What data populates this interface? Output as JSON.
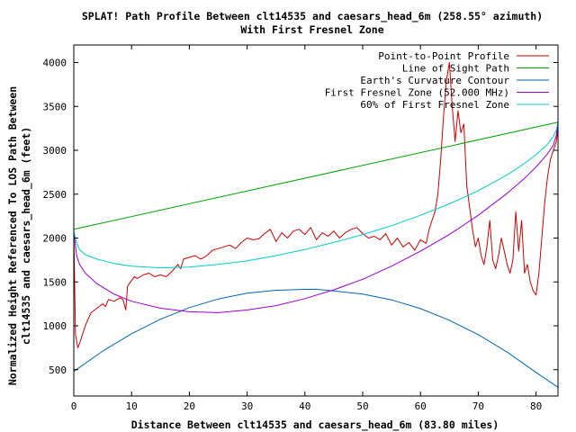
{
  "chart_data": {
    "type": "line",
    "title": "SPLAT! Path Profile Between clt14535 and caesars_head_6m (258.55° azimuth)",
    "subtitle": "With First Fresnel Zone",
    "xlabel": "Distance Between clt14535 and caesars_head_6m (83.80 miles)",
    "ylabel_line1": "Normalized Height Referenced To LOS Path Between",
    "ylabel_line2": "clt14535 and caesars_head_6m (feet)",
    "xlim": [
      0,
      83.8
    ],
    "ylim": [
      200,
      4200
    ],
    "x_ticks": [
      0,
      10,
      20,
      30,
      40,
      50,
      60,
      70,
      80
    ],
    "y_ticks": [
      500,
      1000,
      1500,
      2000,
      2500,
      3000,
      3500,
      4000
    ],
    "grid": false,
    "legend_position": "top-right",
    "series": [
      {
        "name": "Point-to-Point Profile",
        "color": "#cc0000",
        "x": [
          0,
          0.3,
          0.7,
          1,
          1.5,
          2,
          2.5,
          3,
          4,
          5,
          5.5,
          6,
          7,
          8,
          8.5,
          9,
          9.3,
          9.8,
          10.5,
          11,
          12,
          13,
          14,
          15,
          16,
          17,
          18,
          18.5,
          19,
          20,
          21,
          22,
          23,
          24,
          25,
          26,
          27,
          28,
          29,
          30,
          31,
          32,
          33,
          34,
          35,
          36,
          37,
          38,
          39,
          40,
          41,
          42,
          43,
          44,
          45,
          46,
          47,
          48,
          49,
          50,
          51,
          52,
          53,
          54,
          55,
          56,
          57,
          58,
          59,
          60,
          61,
          61.5,
          62,
          62.5,
          63,
          63.5,
          64,
          64.5,
          65,
          65.5,
          66,
          66.5,
          67,
          67.5,
          68,
          69,
          69.5,
          70,
          70.5,
          71,
          71.5,
          72,
          72.5,
          73,
          73.5,
          74,
          74.5,
          75,
          75.5,
          76,
          76.5,
          77,
          77.5,
          78,
          78.5,
          79,
          79.5,
          80,
          80.5,
          81,
          81.5,
          82,
          82.5,
          83,
          83.5,
          83.8
        ],
        "values": [
          2060,
          900,
          750,
          800,
          900,
          1000,
          1080,
          1150,
          1200,
          1250,
          1220,
          1300,
          1280,
          1320,
          1300,
          1180,
          1450,
          1500,
          1560,
          1540,
          1580,
          1600,
          1560,
          1580,
          1560,
          1620,
          1700,
          1650,
          1760,
          1780,
          1800,
          1760,
          1800,
          1860,
          1880,
          1900,
          1920,
          1880,
          1950,
          2000,
          1980,
          1990,
          2050,
          2100,
          1960,
          2060,
          2000,
          2080,
          2100,
          2040,
          2120,
          1980,
          2060,
          2020,
          2080,
          2000,
          2060,
          2100,
          2120,
          2050,
          2000,
          2020,
          1980,
          2050,
          1920,
          2000,
          1900,
          1950,
          1860,
          1980,
          1940,
          2100,
          2200,
          2300,
          2500,
          2900,
          3400,
          3800,
          4000,
          3500,
          3100,
          3450,
          3200,
          3300,
          2600,
          2100,
          1900,
          2000,
          1800,
          1700,
          1900,
          2200,
          1750,
          1650,
          1800,
          2000,
          1850,
          1700,
          1600,
          1750,
          2300,
          1850,
          2200,
          1600,
          1700,
          1500,
          1400,
          1350,
          1600,
          2000,
          2400,
          2700,
          2900,
          3000,
          3100,
          3250
        ]
      },
      {
        "name": "Line of Sight Path",
        "color": "#00a000",
        "x": [
          0,
          83.8
        ],
        "values": [
          2100,
          3320
        ]
      },
      {
        "name": "Earth's Curvature Contour",
        "color": "#0066b3",
        "x": [
          0,
          5,
          10,
          15,
          20,
          25,
          30,
          35,
          40,
          41.9,
          45,
          50,
          55,
          60,
          65,
          70,
          75,
          80,
          83.8
        ],
        "values": [
          480,
          712,
          910,
          1075,
          1207,
          1306,
          1372,
          1405,
          1415,
          1416,
          1398,
          1361,
          1295,
          1196,
          1064,
          899,
          701,
          469,
          300
        ]
      },
      {
        "name": "First Fresnel Zone (52.000 MHz)",
        "color": "#9900cc",
        "x": [
          0,
          0.5,
          1,
          2,
          4,
          7,
          10,
          15,
          20,
          25,
          30,
          35,
          40,
          45,
          50,
          55,
          60,
          65,
          70,
          75,
          78,
          80,
          82,
          83,
          83.5,
          83.8
        ],
        "values": [
          2060,
          1800,
          1700,
          1600,
          1480,
          1360,
          1280,
          1200,
          1160,
          1150,
          1180,
          1230,
          1310,
          1410,
          1530,
          1680,
          1850,
          2040,
          2260,
          2510,
          2680,
          2810,
          2960,
          3060,
          3170,
          3320
        ]
      },
      {
        "name": "60% of First Fresnel Zone",
        "color": "#00cccc",
        "x": [
          0,
          0.5,
          1,
          2,
          4,
          7,
          10,
          15,
          20,
          25,
          30,
          35,
          40,
          45,
          50,
          55,
          60,
          65,
          70,
          75,
          78,
          80,
          82,
          83,
          83.5,
          83.8
        ],
        "values": [
          2080,
          1940,
          1870,
          1810,
          1760,
          1710,
          1680,
          1660,
          1670,
          1700,
          1740,
          1800,
          1870,
          1950,
          2040,
          2140,
          2260,
          2390,
          2540,
          2720,
          2850,
          2950,
          3070,
          3160,
          3230,
          3320
        ]
      }
    ]
  }
}
